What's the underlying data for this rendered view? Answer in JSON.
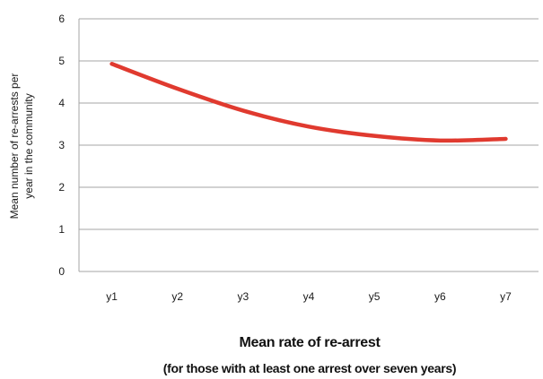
{
  "chart_data": {
    "type": "line",
    "categories": [
      "y1",
      "y2",
      "y3",
      "y4",
      "y5",
      "y6",
      "y7"
    ],
    "series": [
      {
        "values": [
          4.93,
          4.34,
          3.82,
          3.44,
          3.22,
          3.11,
          3.15
        ],
        "color": "#e03a2f"
      }
    ],
    "ylim": [
      0,
      6
    ],
    "yticks": [
      "0",
      "1",
      "2",
      "3",
      "4",
      "5",
      "6"
    ],
    "ylabel_lines": [
      "Mean number of re-arrests per",
      "year in the community"
    ],
    "xlabel_lines": [
      "Mean rate of re-arrest",
      "(for those with at least one arrest over seven years)"
    ],
    "grid": true,
    "gridline_color": "#a6a6a6",
    "legend": "none"
  }
}
